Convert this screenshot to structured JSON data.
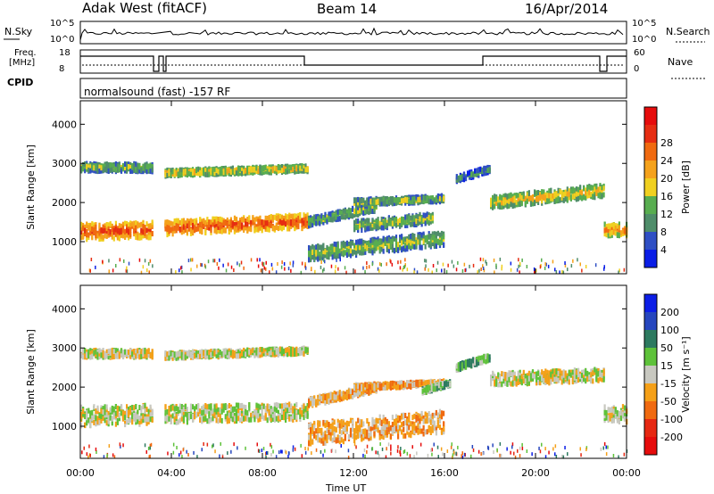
{
  "header": {
    "station": "Adak West (fitACF)",
    "beam": "Beam 14",
    "date": "16/Apr/2014"
  },
  "panels": {
    "nsky_label": "N.Sky",
    "nsearch_label": "N.Search",
    "freq_label_1": "Freq.",
    "freq_label_2": "[MHz]",
    "nave_label": "Nave",
    "cpid_label": "CPID",
    "cpid_value": "normalsound (fast) -157 RF",
    "left_ticks_noise": [
      "10^5",
      "10^0"
    ],
    "right_ticks_noise": [
      "10^5",
      "10^0"
    ],
    "left_ticks_freq": [
      "18",
      "8"
    ],
    "right_ticks_nave": [
      "60",
      "0"
    ]
  },
  "colors": {
    "power": [
      "#0a1ee6",
      "#2f4fc4",
      "#4f8d6a",
      "#58ad50",
      "#f0d020",
      "#f5a21c",
      "#f06a10",
      "#e62d12",
      "#e60c0c"
    ],
    "velocity": [
      "#0c1ee6",
      "#2646be",
      "#2d7a60",
      "#5ec23a",
      "#c8c8c0",
      "#f5a018",
      "#f06a10",
      "#e62812",
      "#e60c0c"
    ]
  },
  "chart_data": [
    {
      "type": "heatmap",
      "name": "power",
      "xlabel": "",
      "ylabel": "Slant Range [km]",
      "x_ticks": [
        "00:00",
        "04:00",
        "08:00",
        "12:00",
        "16:00",
        "20:00",
        "00:00"
      ],
      "y_ticks": [
        1000,
        2000,
        3000,
        4000
      ],
      "y_range": [
        180,
        4600
      ],
      "x_range_hours": [
        0,
        24
      ],
      "colorbar_label": "Power [dB]",
      "colorbar_ticks": [
        4,
        8,
        12,
        16,
        20,
        24,
        28
      ],
      "colorbar_range": [
        0,
        30
      ]
    },
    {
      "type": "heatmap",
      "name": "velocity",
      "xlabel": "Time UT",
      "ylabel": "Slant Range [km]",
      "x_ticks": [
        "00:00",
        "04:00",
        "08:00",
        "12:00",
        "16:00",
        "20:00",
        "00:00"
      ],
      "y_ticks": [
        1000,
        2000,
        3000,
        4000
      ],
      "y_range": [
        180,
        4600
      ],
      "x_range_hours": [
        0,
        24
      ],
      "colorbar_label": "Velocity [m s⁻¹]",
      "colorbar_ticks": [
        200,
        100,
        50,
        15,
        -15,
        -50,
        -100,
        -200
      ]
    }
  ],
  "axes": {
    "time_label": "Time UT"
  }
}
